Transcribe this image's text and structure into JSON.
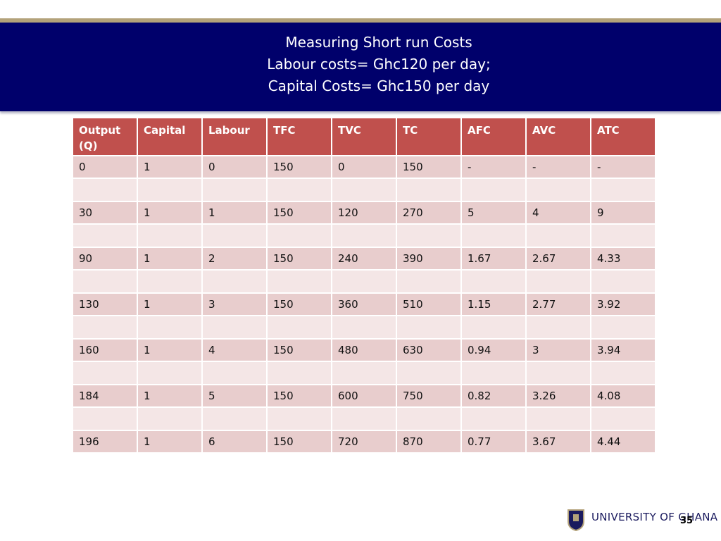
{
  "header": {
    "title": [
      "Measuring Short run Costs",
      "Labour costs= Ghc120 per day;",
      "Capital Costs= Ghc150 per day"
    ]
  },
  "table": {
    "columns": [
      "Output (Q)",
      "Capital",
      "Labour",
      "TFC",
      "TVC",
      "TC",
      "AFC",
      "AVC",
      "ATC"
    ],
    "rows": [
      [
        "0",
        "1",
        "0",
        "150",
        "0",
        "150",
        "-",
        "-",
        "-"
      ],
      [
        "30",
        "1",
        "1",
        "150",
        "120",
        "270",
        "5",
        "4",
        "9"
      ],
      [
        "90",
        "1",
        "2",
        "150",
        "240",
        "390",
        "1.67",
        "2.67",
        "4.33"
      ],
      [
        "130",
        "1",
        "3",
        "150",
        "360",
        "510",
        "1.15",
        "2.77",
        "3.92"
      ],
      [
        "160",
        "1",
        "4",
        "150",
        "480",
        "630",
        "0.94",
        "3",
        "3.94"
      ],
      [
        "184",
        "1",
        "5",
        "150",
        "600",
        "750",
        "0.82",
        "3.26",
        "4.08"
      ],
      [
        "196",
        "1",
        "6",
        "150",
        "720",
        "870",
        "0.77",
        "3.67",
        "4.44"
      ]
    ]
  },
  "footer": {
    "institution": "UNIVERSITY OF GHANA",
    "page": "35"
  }
}
